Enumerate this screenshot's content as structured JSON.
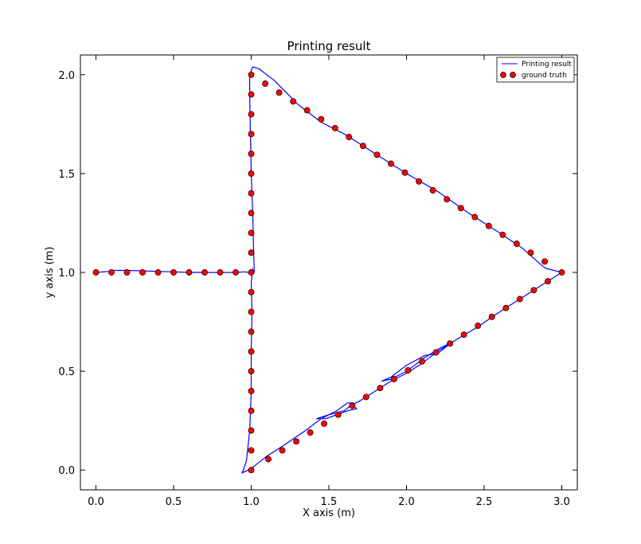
{
  "chart_data": {
    "type": "line",
    "title": "Printing result",
    "xlabel": "X axis (m)",
    "ylabel": "y axis (m)",
    "xlim": [
      -0.1,
      3.1
    ],
    "ylim": [
      -0.1,
      2.1
    ],
    "xticks": [
      0.0,
      0.5,
      1.0,
      1.5,
      2.0,
      2.5,
      3.0
    ],
    "xtick_labels": [
      "0.0",
      "0.5",
      "1.0",
      "1.5",
      "2.0",
      "2.5",
      "3.0"
    ],
    "yticks": [
      0.0,
      0.5,
      1.0,
      1.5,
      2.0
    ],
    "ytick_labels": [
      "0.0",
      "0.5",
      "1.0",
      "1.5",
      "2.0"
    ],
    "grid": false,
    "legend_position": "top-right",
    "colors": {
      "line": "#0000ff",
      "marker_fill": "#ff0000",
      "marker_edge": "#000000"
    },
    "series": [
      {
        "name": "Printing result",
        "style": "line",
        "points": [
          [
            0.0,
            1.0
          ],
          [
            0.08,
            1.005
          ],
          [
            0.1,
            1.01
          ],
          [
            0.2,
            1.01
          ],
          [
            0.3,
            1.008
          ],
          [
            0.4,
            1.005
          ],
          [
            0.5,
            1.003
          ],
          [
            0.6,
            1.0
          ],
          [
            0.7,
            1.0
          ],
          [
            0.8,
            0.999
          ],
          [
            0.9,
            1.0
          ],
          [
            0.96,
            1.003
          ],
          [
            0.98,
            1.0
          ],
          [
            1.0,
            0.995
          ],
          [
            1.02,
            1.0
          ],
          [
            1.015,
            1.12
          ],
          [
            1.01,
            1.3
          ],
          [
            1.0,
            1.5
          ],
          [
            0.995,
            1.7
          ],
          [
            0.99,
            1.9
          ],
          [
            0.99,
            2.0
          ],
          [
            1.01,
            2.04
          ],
          [
            1.05,
            2.03
          ],
          [
            1.15,
            1.97
          ],
          [
            1.3,
            1.85
          ],
          [
            1.45,
            1.76
          ],
          [
            1.6,
            1.7
          ],
          [
            1.8,
            1.6
          ],
          [
            2.0,
            1.5
          ],
          [
            2.2,
            1.41
          ],
          [
            2.4,
            1.3
          ],
          [
            2.6,
            1.2
          ],
          [
            2.75,
            1.12
          ],
          [
            2.85,
            1.05
          ],
          [
            2.88,
            1.03
          ],
          [
            2.9,
            1.02
          ],
          [
            3.0,
            1.0
          ],
          [
            2.9,
            0.95
          ],
          [
            2.8,
            0.9
          ],
          [
            2.7,
            0.85
          ],
          [
            2.6,
            0.8
          ],
          [
            2.45,
            0.72
          ],
          [
            2.3,
            0.65
          ],
          [
            2.2,
            0.59
          ],
          [
            2.12,
            0.58
          ],
          [
            2.0,
            0.53
          ],
          [
            1.9,
            0.47
          ],
          [
            1.84,
            0.45
          ],
          [
            1.9,
            0.46
          ],
          [
            2.0,
            0.5
          ],
          [
            2.12,
            0.57
          ],
          [
            2.2,
            0.61
          ],
          [
            2.3,
            0.65
          ],
          [
            2.2,
            0.6
          ],
          [
            2.1,
            0.54
          ],
          [
            2.0,
            0.49
          ],
          [
            1.9,
            0.45
          ],
          [
            1.8,
            0.4
          ],
          [
            1.7,
            0.35
          ],
          [
            1.65,
            0.33
          ],
          [
            1.68,
            0.31
          ],
          [
            1.62,
            0.3
          ],
          [
            1.55,
            0.28
          ],
          [
            1.48,
            0.26
          ],
          [
            1.42,
            0.26
          ],
          [
            1.5,
            0.28
          ],
          [
            1.6,
            0.3
          ],
          [
            1.66,
            0.34
          ],
          [
            1.62,
            0.34
          ],
          [
            1.55,
            0.3
          ],
          [
            1.45,
            0.26
          ],
          [
            1.35,
            0.2
          ],
          [
            1.2,
            0.12
          ],
          [
            1.1,
            0.07
          ],
          [
            1.02,
            0.02
          ],
          [
            0.98,
            0.0
          ],
          [
            0.94,
            -0.015
          ],
          [
            0.95,
            0.0
          ],
          [
            0.97,
            0.05
          ],
          [
            0.99,
            0.2
          ],
          [
            1.0,
            0.4
          ],
          [
            1.0,
            0.6
          ],
          [
            1.005,
            0.8
          ],
          [
            1.0,
            0.95
          ],
          [
            1.01,
            1.02
          ]
        ]
      },
      {
        "name": "ground truth",
        "style": "markers",
        "points": [
          [
            0.0,
            1.0
          ],
          [
            0.1,
            1.0
          ],
          [
            0.2,
            1.0
          ],
          [
            0.3,
            1.0
          ],
          [
            0.4,
            1.0
          ],
          [
            0.5,
            1.0
          ],
          [
            0.6,
            1.0
          ],
          [
            0.7,
            1.0
          ],
          [
            0.8,
            1.0
          ],
          [
            0.9,
            1.0
          ],
          [
            1.0,
            1.0
          ],
          [
            1.0,
            0.0
          ],
          [
            1.0,
            0.1
          ],
          [
            1.0,
            0.2
          ],
          [
            1.0,
            0.3
          ],
          [
            1.0,
            0.4
          ],
          [
            1.0,
            0.5
          ],
          [
            1.0,
            0.6
          ],
          [
            1.0,
            0.7
          ],
          [
            1.0,
            0.8
          ],
          [
            1.0,
            0.9
          ],
          [
            1.0,
            1.1
          ],
          [
            1.0,
            1.2
          ],
          [
            1.0,
            1.3
          ],
          [
            1.0,
            1.4
          ],
          [
            1.0,
            1.5
          ],
          [
            1.0,
            1.6
          ],
          [
            1.0,
            1.7
          ],
          [
            1.0,
            1.8
          ],
          [
            1.0,
            1.9
          ],
          [
            1.0,
            2.0
          ],
          [
            1.09,
            1.955
          ],
          [
            1.18,
            1.91
          ],
          [
            1.27,
            1.865
          ],
          [
            1.36,
            1.82
          ],
          [
            1.45,
            1.775
          ],
          [
            1.54,
            1.73
          ],
          [
            1.63,
            1.685
          ],
          [
            1.72,
            1.64
          ],
          [
            1.81,
            1.595
          ],
          [
            1.9,
            1.55
          ],
          [
            1.99,
            1.505
          ],
          [
            2.08,
            1.46
          ],
          [
            2.17,
            1.415
          ],
          [
            2.26,
            1.37
          ],
          [
            2.35,
            1.325
          ],
          [
            2.44,
            1.28
          ],
          [
            2.53,
            1.235
          ],
          [
            2.62,
            1.19
          ],
          [
            2.71,
            1.145
          ],
          [
            2.8,
            1.1
          ],
          [
            2.89,
            1.055
          ],
          [
            3.0,
            1.0
          ],
          [
            2.91,
            0.955
          ],
          [
            2.82,
            0.91
          ],
          [
            2.73,
            0.865
          ],
          [
            2.64,
            0.82
          ],
          [
            2.55,
            0.775
          ],
          [
            2.46,
            0.73
          ],
          [
            2.37,
            0.685
          ],
          [
            2.28,
            0.64
          ],
          [
            2.19,
            0.595
          ],
          [
            2.1,
            0.55
          ],
          [
            2.01,
            0.505
          ],
          [
            1.92,
            0.46
          ],
          [
            1.83,
            0.415
          ],
          [
            1.74,
            0.37
          ],
          [
            1.65,
            0.325
          ],
          [
            1.56,
            0.28
          ],
          [
            1.47,
            0.235
          ],
          [
            1.38,
            0.19
          ],
          [
            1.29,
            0.145
          ],
          [
            1.2,
            0.1
          ],
          [
            1.11,
            0.055
          ]
        ]
      }
    ]
  }
}
